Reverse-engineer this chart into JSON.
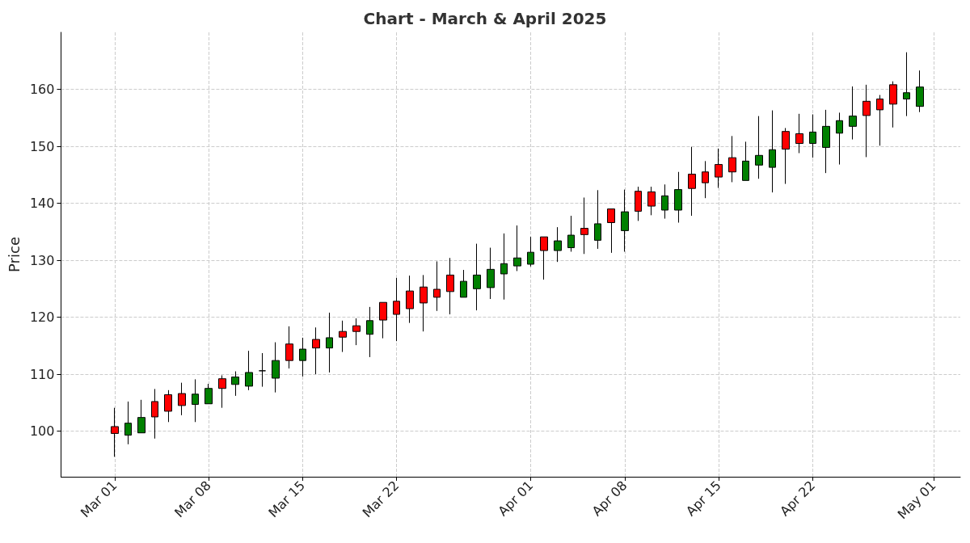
{
  "chart_data": {
    "type": "candlestick",
    "title": "Chart - March & April 2025",
    "ylabel": "Price",
    "x": [
      "2025-03-01",
      "2025-03-02",
      "2025-03-03",
      "2025-03-04",
      "2025-03-05",
      "2025-03-06",
      "2025-03-07",
      "2025-03-08",
      "2025-03-09",
      "2025-03-10",
      "2025-03-11",
      "2025-03-12",
      "2025-03-13",
      "2025-03-14",
      "2025-03-15",
      "2025-03-16",
      "2025-03-17",
      "2025-03-18",
      "2025-03-19",
      "2025-03-20",
      "2025-03-21",
      "2025-03-22",
      "2025-03-23",
      "2025-03-24",
      "2025-03-25",
      "2025-03-26",
      "2025-03-27",
      "2025-03-28",
      "2025-03-29",
      "2025-03-30",
      "2025-03-31",
      "2025-04-01",
      "2025-04-02",
      "2025-04-03",
      "2025-04-04",
      "2025-04-05",
      "2025-04-06",
      "2025-04-07",
      "2025-04-08",
      "2025-04-09",
      "2025-04-10",
      "2025-04-11",
      "2025-04-12",
      "2025-04-13",
      "2025-04-14",
      "2025-04-15",
      "2025-04-16",
      "2025-04-17",
      "2025-04-18",
      "2025-04-19",
      "2025-04-20",
      "2025-04-21",
      "2025-04-22",
      "2025-04-23",
      "2025-04-24",
      "2025-04-25",
      "2025-04-26",
      "2025-04-27",
      "2025-04-28",
      "2025-04-29",
      "2025-04-30"
    ],
    "ohlc": [
      [
        100.8,
        104.1,
        95.5,
        99.6
      ],
      [
        99.3,
        105.2,
        97.7,
        101.4
      ],
      [
        99.7,
        105.5,
        99.7,
        102.4
      ],
      [
        105.2,
        107.4,
        98.7,
        102.5
      ],
      [
        106.4,
        107.2,
        101.6,
        103.5
      ],
      [
        106.6,
        108.5,
        102.8,
        104.5
      ],
      [
        104.7,
        109.1,
        101.6,
        106.5
      ],
      [
        104.8,
        108.3,
        104.8,
        107.5
      ],
      [
        109.2,
        109.8,
        104.1,
        107.5
      ],
      [
        108.2,
        110.5,
        106.2,
        109.5
      ],
      [
        107.9,
        114.1,
        107.2,
        110.3
      ],
      [
        110.6,
        113.7,
        107.8,
        110.6
      ],
      [
        109.3,
        115.6,
        106.8,
        112.4
      ],
      [
        115.3,
        118.4,
        111.0,
        112.4
      ],
      [
        112.4,
        116.4,
        109.6,
        114.4
      ],
      [
        116.1,
        118.2,
        110.0,
        114.6
      ],
      [
        114.6,
        120.8,
        110.3,
        116.4
      ],
      [
        117.5,
        119.4,
        113.9,
        116.5
      ],
      [
        118.5,
        119.8,
        115.1,
        117.5
      ],
      [
        117.0,
        121.8,
        113.0,
        119.4
      ],
      [
        122.6,
        122.6,
        116.3,
        119.5
      ],
      [
        122.8,
        126.9,
        115.8,
        120.5
      ],
      [
        124.6,
        127.3,
        119.0,
        121.5
      ],
      [
        125.3,
        127.4,
        117.5,
        122.5
      ],
      [
        124.9,
        129.8,
        121.1,
        123.5
      ],
      [
        127.4,
        130.4,
        120.5,
        124.5
      ],
      [
        123.5,
        128.3,
        123.5,
        126.3
      ],
      [
        125.0,
        132.9,
        121.2,
        127.4
      ],
      [
        125.2,
        132.2,
        123.2,
        128.4
      ],
      [
        127.6,
        134.7,
        123.1,
        129.4
      ],
      [
        129.0,
        136.1,
        128.1,
        130.4
      ],
      [
        129.3,
        134.1,
        128.9,
        131.4
      ],
      [
        134.1,
        134.1,
        126.6,
        131.7
      ],
      [
        131.7,
        135.8,
        129.7,
        133.4
      ],
      [
        132.2,
        137.8,
        131.5,
        134.4
      ],
      [
        135.6,
        141.0,
        131.1,
        134.5
      ],
      [
        133.5,
        142.3,
        132.0,
        136.4
      ],
      [
        139.0,
        139.0,
        131.3,
        136.6
      ],
      [
        135.2,
        142.4,
        131.5,
        138.5
      ],
      [
        142.1,
        142.9,
        136.9,
        138.6
      ],
      [
        142.0,
        142.9,
        137.9,
        139.5
      ],
      [
        138.8,
        143.3,
        137.3,
        141.3
      ],
      [
        138.8,
        145.5,
        136.6,
        142.4
      ],
      [
        145.1,
        149.9,
        137.8,
        142.6
      ],
      [
        145.5,
        147.4,
        140.9,
        143.6
      ],
      [
        146.8,
        149.6,
        142.7,
        144.6
      ],
      [
        148.0,
        151.8,
        143.7,
        145.5
      ],
      [
        144.0,
        150.8,
        144.0,
        147.4
      ],
      [
        146.7,
        155.3,
        144.3,
        148.4
      ],
      [
        146.3,
        156.3,
        141.9,
        149.4
      ],
      [
        152.6,
        153.2,
        143.4,
        149.5
      ],
      [
        152.2,
        155.7,
        148.8,
        150.5
      ],
      [
        150.5,
        155.6,
        148.0,
        152.5
      ],
      [
        149.8,
        156.4,
        145.3,
        153.5
      ],
      [
        152.3,
        155.9,
        146.8,
        154.5
      ],
      [
        153.5,
        160.5,
        151.2,
        155.3
      ],
      [
        157.9,
        160.8,
        148.1,
        155.4
      ],
      [
        158.3,
        159.0,
        150.1,
        156.4
      ],
      [
        160.8,
        161.4,
        153.3,
        157.4
      ],
      [
        158.3,
        166.5,
        155.3,
        159.4
      ],
      [
        157.0,
        163.3,
        156.0,
        160.4
      ]
    ],
    "colors": [
      "#ff0000",
      "#008000",
      "#008000",
      "#ff0000",
      "#ff0000",
      "#ff0000",
      "#008000",
      "#008000",
      "#ff0000",
      "#008000",
      "#008000",
      "#000000",
      "#008000",
      "#ff0000",
      "#008000",
      "#ff0000",
      "#008000",
      "#ff0000",
      "#ff0000",
      "#008000",
      "#ff0000",
      "#ff0000",
      "#ff0000",
      "#ff0000",
      "#ff0000",
      "#ff0000",
      "#008000",
      "#008000",
      "#008000",
      "#008000",
      "#008000",
      "#008000",
      "#ff0000",
      "#008000",
      "#008000",
      "#ff0000",
      "#008000",
      "#ff0000",
      "#008000",
      "#ff0000",
      "#ff0000",
      "#008000",
      "#008000",
      "#ff0000",
      "#ff0000",
      "#ff0000",
      "#ff0000",
      "#008000",
      "#008000",
      "#008000",
      "#ff0000",
      "#ff0000",
      "#008000",
      "#008000",
      "#008000",
      "#008000",
      "#ff0000",
      "#ff0000",
      "#ff0000",
      "#008000",
      "#008000"
    ],
    "xlim": [
      "2025-02-25",
      "2025-05-03"
    ],
    "xticks": [
      {
        "value": "2025-03-01",
        "label": "Mar 01"
      },
      {
        "value": "2025-03-08",
        "label": "Mar 08"
      },
      {
        "value": "2025-03-15",
        "label": "Mar 15"
      },
      {
        "value": "2025-03-22",
        "label": "Mar 22"
      },
      {
        "value": "2025-04-01",
        "label": "Apr 01"
      },
      {
        "value": "2025-04-08",
        "label": "Apr 08"
      },
      {
        "value": "2025-04-15",
        "label": "Apr 15"
      },
      {
        "value": "2025-04-22",
        "label": "Apr 22"
      },
      {
        "value": "2025-05-01",
        "label": "May 01"
      }
    ],
    "ylim": [
      92,
      170
    ],
    "yticks": [
      100,
      110,
      120,
      130,
      140,
      150,
      160
    ],
    "grid": true
  }
}
